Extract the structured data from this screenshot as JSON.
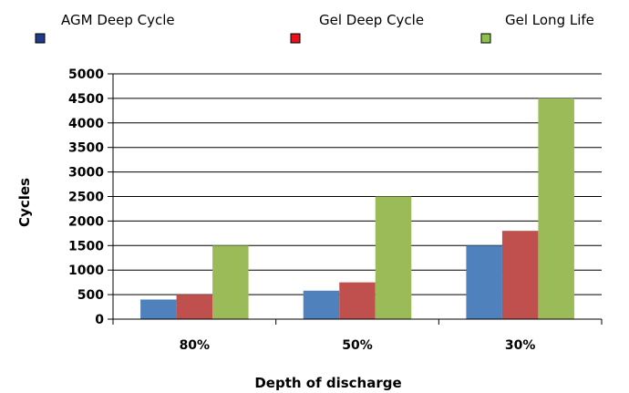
{
  "chart_data": {
    "type": "bar",
    "title": "",
    "xlabel": "Depth of discharge",
    "ylabel": "Cycles",
    "categories": [
      "80%",
      "50%",
      "30%"
    ],
    "series": [
      {
        "name": "AGM Deep Cycle",
        "values": [
          400,
          580,
          1500
        ],
        "color": "#4f81bd"
      },
      {
        "name": "Gel Deep Cycle",
        "values": [
          500,
          750,
          1800
        ],
        "color": "#c0504d"
      },
      {
        "name": "Gel Long Life",
        "values": [
          1500,
          2500,
          4500
        ],
        "color": "#9bbb59"
      }
    ],
    "ylim": [
      0,
      5000
    ],
    "yticks": [
      0,
      500,
      1000,
      1500,
      2000,
      2500,
      3000,
      3500,
      4000,
      4500,
      5000
    ],
    "grid": true,
    "legend_position": "top"
  },
  "legend_marker_colors": [
    "#1f3a8a",
    "#e8101a",
    "#8bc34a"
  ]
}
